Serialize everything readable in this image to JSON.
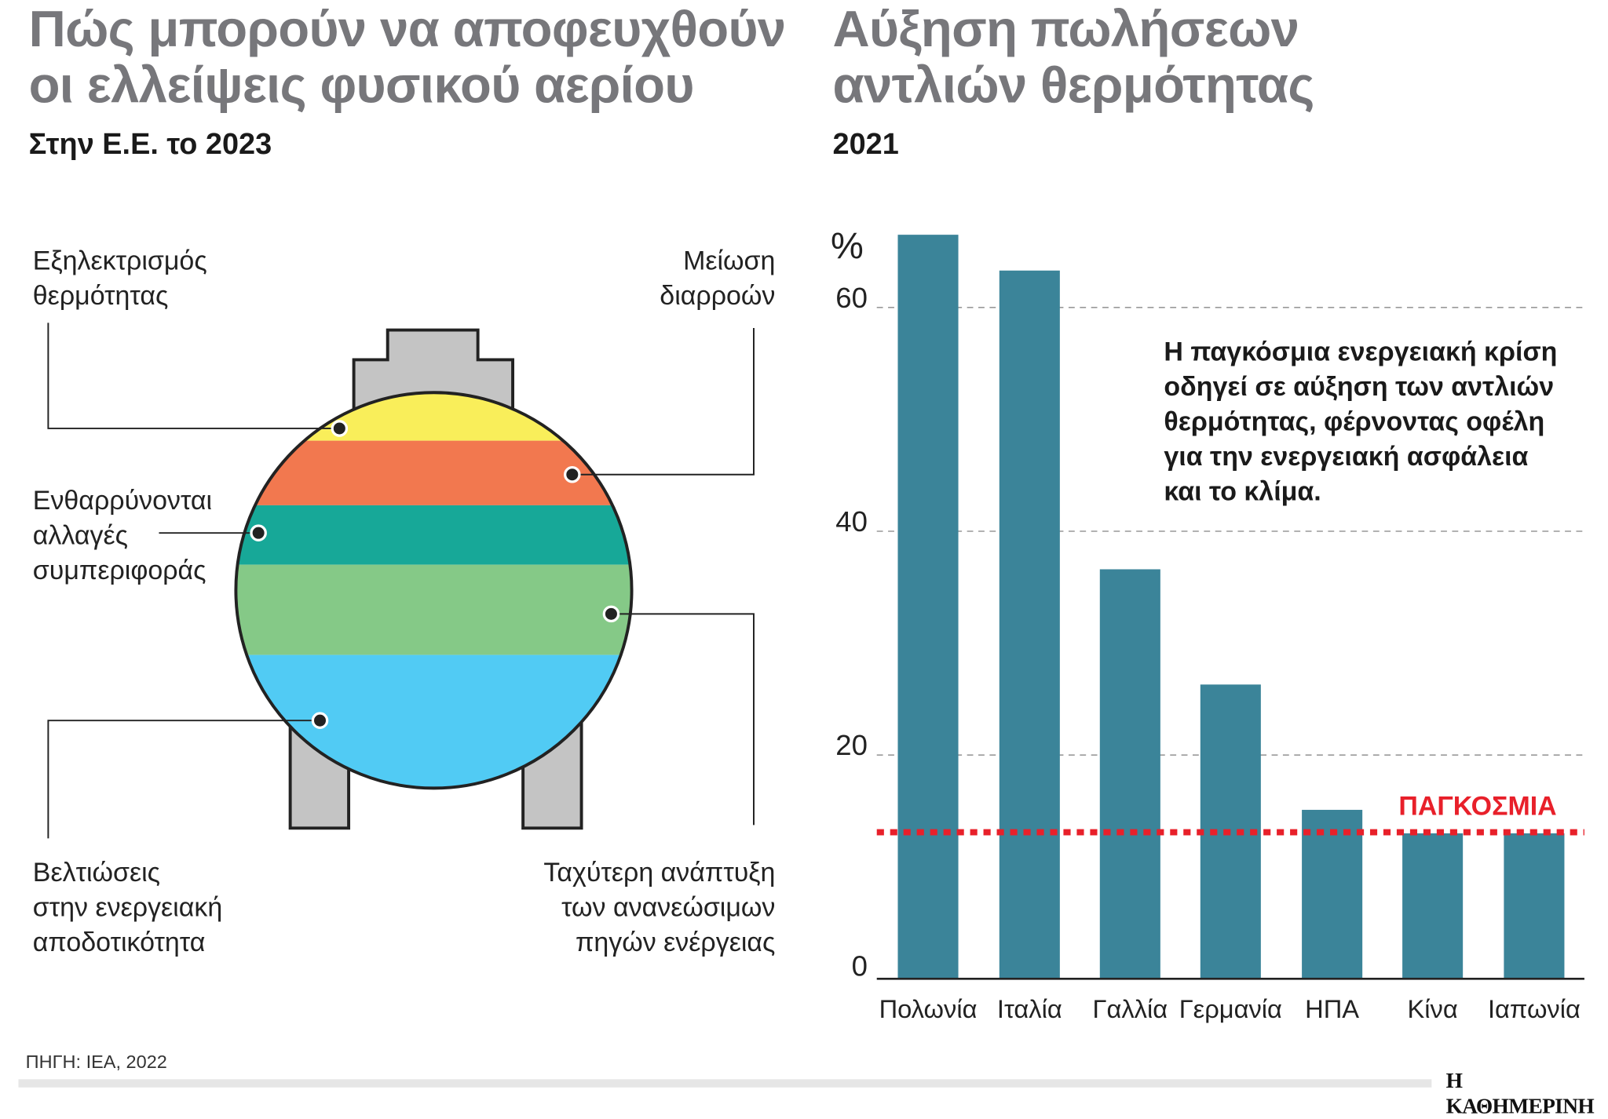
{
  "left": {
    "title_line1": "Πώς μπορούν να αποφευχθούν",
    "title_line2": "οι ελλείψεις φυσικού αερίου",
    "subtitle": "Στην Ε.Ε. το 2023",
    "callouts": [
      {
        "line1": "Εξηλεκτρισμός",
        "line2": "θερμότητας",
        "color": "#f9ee5a"
      },
      {
        "line1": "Μείωση",
        "line2": "διαρροών",
        "color": "#f2784f"
      },
      {
        "line1": "Ενθαρρύνονται",
        "line2": "αλλαγές",
        "line3": "συμπεριφοράς",
        "color": "#17a898"
      },
      {
        "line1": "Ταχύτερη ανάπτυξη",
        "line2": "των ανανεώσιμων",
        "line3": "πηγών ενέργειας",
        "color": "#85c987"
      },
      {
        "line1": "Βελτιώσεις",
        "line2": "στην ενεργειακή",
        "line3": "αποδοτικότητα",
        "color": "#51cbf4"
      }
    ]
  },
  "chart_data": {
    "type": "bar",
    "title": "Αύξηση πωλήσεων αντλιών θερμότητας",
    "title_line1": "Αύξηση πωλήσεων",
    "title_line2": "αντλιών θερμότητας",
    "subtitle": "2021",
    "ylabel": "%",
    "ylim": [
      0,
      70
    ],
    "yticks": [
      0,
      20,
      40,
      60
    ],
    "grid": true,
    "categories": [
      "Πολωνία",
      "Ιταλία",
      "Γαλλία",
      "Γερμανία",
      "ΗΠΑ",
      "Κίνα",
      "Ιαπωνία"
    ],
    "values": [
      66.5,
      63.3,
      36.6,
      26.3,
      15.1,
      13.0,
      13.0
    ],
    "bar_color": "#3b8499",
    "reference_line": {
      "label": "ΠΑΓΚΟΣΜΙΑ",
      "value": 13.1,
      "color": "#e8202a"
    },
    "annotation": [
      "Η παγκόσμια ενεργειακή κρίση",
      "οδηγεί σε αύξηση των αντλιών",
      "θερμότητας, φέρνοντας οφέλη",
      "για την ενεργειακή ασφάλεια",
      "και το κλίμα."
    ]
  },
  "footer": {
    "source": "ΠΗΓΗ: IEA, 2022",
    "brand": "Η ΚΑΘΗΜΕΡΙΝΗ"
  }
}
